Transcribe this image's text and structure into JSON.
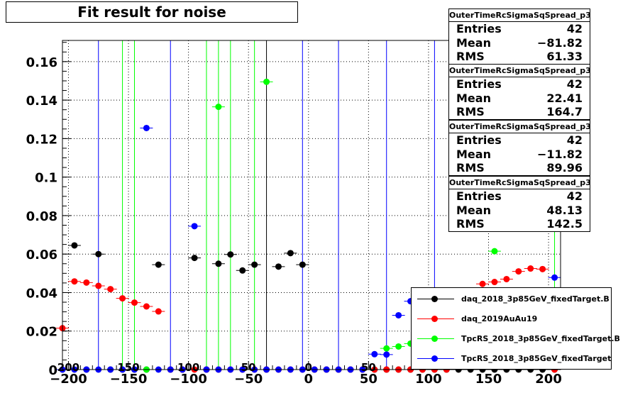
{
  "title": "Fit result for noise",
  "chart_data": {
    "type": "scatter",
    "xlim": [
      -205,
      210
    ],
    "ylim": [
      0,
      0.171
    ],
    "x_ticks": [
      -200,
      -150,
      -100,
      -50,
      0,
      50,
      100,
      150,
      200
    ],
    "x_tick_labels": [
      "−200",
      "−150",
      "−100",
      "−50",
      "0",
      "50",
      "100",
      "150",
      "200"
    ],
    "y_ticks": [
      0,
      0.02,
      0.04,
      0.06,
      0.08,
      0.1,
      0.12,
      0.14,
      0.16
    ],
    "y_tick_labels": [
      "0",
      "0.02",
      "0.04",
      "0.06",
      "0.08",
      "0.1",
      "0.12",
      "0.14",
      "0.16"
    ],
    "overlay_x_labels": [
      "200",
      "150",
      "100",
      "50",
      "0",
      "50"
    ],
    "grid": true,
    "series": [
      {
        "name": "daq_2018_3p85GeV_fixedTarget.B",
        "color": "#000000",
        "vlines": [
          -35
        ],
        "points": [
          [
            -205,
            0
          ],
          [
            -195,
            0.0645
          ],
          [
            -185,
            0
          ],
          [
            -175,
            0.06
          ],
          [
            -165,
            0
          ],
          [
            -155,
            0
          ],
          [
            -145,
            0
          ],
          [
            -135,
            0
          ],
          [
            -125,
            0.0545
          ],
          [
            -115,
            0
          ],
          [
            -105,
            0
          ],
          [
            -95,
            0.058
          ],
          [
            -85,
            0
          ],
          [
            -75,
            0.055
          ],
          [
            -65,
            0.0598
          ],
          [
            -55,
            0.0515
          ],
          [
            -45,
            0.0545
          ],
          [
            -35,
            0
          ],
          [
            -25,
            0.0535
          ],
          [
            -15,
            0.0605
          ],
          [
            -5,
            0.0545
          ],
          [
            5,
            0
          ],
          [
            15,
            0
          ],
          [
            25,
            0
          ],
          [
            35,
            0
          ],
          [
            45,
            0
          ],
          [
            55,
            0
          ],
          [
            65,
            0
          ],
          [
            75,
            0
          ],
          [
            85,
            0
          ],
          [
            95,
            0
          ],
          [
            105,
            0
          ],
          [
            115,
            0
          ],
          [
            125,
            0
          ],
          [
            135,
            0
          ],
          [
            145,
            0
          ],
          [
            155,
            0
          ],
          [
            165,
            0
          ],
          [
            175,
            0
          ],
          [
            185,
            0
          ],
          [
            195,
            0
          ],
          [
            205,
            0
          ]
        ]
      },
      {
        "name": "daq_2019AuAu19",
        "color": "#ff0000",
        "vlines": [],
        "points": [
          [
            -205,
            0.0215
          ],
          [
            -195,
            0.0458
          ],
          [
            -185,
            0.0452
          ],
          [
            -175,
            0.0435
          ],
          [
            -165,
            0.0418
          ],
          [
            -155,
            0.037
          ],
          [
            -145,
            0.0348
          ],
          [
            -135,
            0.0328
          ],
          [
            -125,
            0.0302
          ],
          [
            -115,
            0
          ],
          [
            -105,
            0
          ],
          [
            -95,
            0
          ],
          [
            -85,
            0
          ],
          [
            -75,
            0
          ],
          [
            -65,
            0
          ],
          [
            -55,
            0
          ],
          [
            -45,
            0
          ],
          [
            -35,
            0
          ],
          [
            -25,
            0
          ],
          [
            -15,
            0
          ],
          [
            -5,
            0
          ],
          [
            5,
            0
          ],
          [
            15,
            0
          ],
          [
            25,
            0
          ],
          [
            35,
            0
          ],
          [
            45,
            0
          ],
          [
            55,
            0
          ],
          [
            65,
            0
          ],
          [
            75,
            0
          ],
          [
            85,
            0
          ],
          [
            95,
            0
          ],
          [
            105,
            0
          ],
          [
            115,
            0
          ],
          [
            125,
            0.041
          ],
          [
            135,
            0.0405
          ],
          [
            145,
            0.0445
          ],
          [
            155,
            0.0455
          ],
          [
            165,
            0.047
          ],
          [
            175,
            0.051
          ],
          [
            185,
            0.0525
          ],
          [
            195,
            0.0522
          ],
          [
            205,
            0
          ]
        ]
      },
      {
        "name": "TpcRS_2018_3p85GeV_fixedTarget.B",
        "color": "#00ff00",
        "vlines": [
          -155,
          -145,
          -85,
          -75,
          -65,
          -45,
          205
        ],
        "points": [
          [
            -135,
            0
          ],
          [
            -75,
            0.1365
          ],
          [
            -35,
            0.1495
          ],
          [
            65,
            0.011
          ],
          [
            75,
            0.012
          ],
          [
            85,
            0.0135
          ],
          [
            155,
            0.0615
          ]
        ]
      },
      {
        "name": "TpcRS_2018_3p85GeV_fixedTarget",
        "color": "#0000ff",
        "vlines": [
          -175,
          -115,
          -5,
          25,
          65,
          105
        ],
        "points": [
          [
            -205,
            0
          ],
          [
            -195,
            0
          ],
          [
            -185,
            0
          ],
          [
            -175,
            0
          ],
          [
            -165,
            0
          ],
          [
            -155,
            0
          ],
          [
            -145,
            0
          ],
          [
            -135,
            0.1255
          ],
          [
            -125,
            0
          ],
          [
            -115,
            0
          ],
          [
            -105,
            0
          ],
          [
            -95,
            0.0745
          ],
          [
            -85,
            0
          ],
          [
            -75,
            0
          ],
          [
            -65,
            0
          ],
          [
            -55,
            0
          ],
          [
            -45,
            0
          ],
          [
            -35,
            0
          ],
          [
            -25,
            0
          ],
          [
            -15,
            0
          ],
          [
            -5,
            0
          ],
          [
            5,
            0
          ],
          [
            15,
            0
          ],
          [
            25,
            0
          ],
          [
            35,
            0
          ],
          [
            45,
            0
          ],
          [
            55,
            0.008
          ],
          [
            65,
            0.0078
          ],
          [
            75,
            0.0282
          ],
          [
            85,
            0.0355
          ],
          [
            95,
            0.0395
          ],
          [
            105,
            0.0405
          ],
          [
            205,
            0.0478
          ]
        ]
      }
    ]
  },
  "stats_boxes": [
    {
      "title": "OuterTimeRcSigmaSqSpread_p3",
      "entries_label": "Entries",
      "entries": "42",
      "mean_label": "Mean",
      "mean": "−81.82",
      "rms_label": "RMS",
      "rms": "61.33"
    },
    {
      "title": "OuterTimeRcSigmaSqSpread_p3",
      "entries_label": "Entries",
      "entries": "42",
      "mean_label": "Mean",
      "mean": "22.41",
      "rms_label": "RMS",
      "rms": "164.7"
    },
    {
      "title": "OuterTimeRcSigmaSqSpread_p3",
      "entries_label": "Entries",
      "entries": "42",
      "mean_label": "Mean",
      "mean": "−11.82",
      "rms_label": "RMS",
      "rms": "89.96"
    },
    {
      "title": "OuterTimeRcSigmaSqSpread_p3",
      "entries_label": "Entries",
      "entries": "42",
      "mean_label": "Mean",
      "mean": "48.13",
      "rms_label": "RMS",
      "rms": "142.5"
    }
  ],
  "legend": [
    {
      "label": "daq_2018_3p85GeV_fixedTarget.B",
      "color": "#000000"
    },
    {
      "label": "daq_2019AuAu19",
      "color": "#ff0000"
    },
    {
      "label": "TpcRS_2018_3p85GeV_fixedTarget.B",
      "color": "#00ff00"
    },
    {
      "label": "TpcRS_2018_3p85GeV_fixedTarget",
      "color": "#0000ff"
    }
  ]
}
